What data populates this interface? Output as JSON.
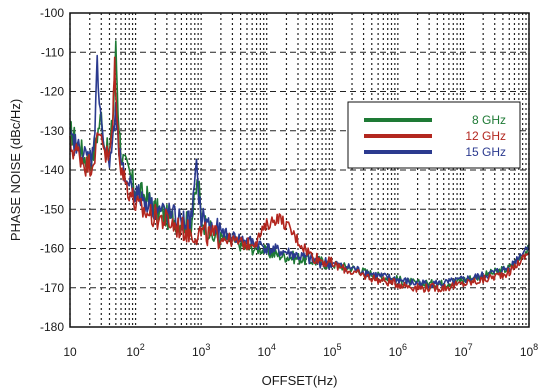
{
  "chart_data": {
    "type": "line",
    "xlabel": "OFFSET(Hz)",
    "ylabel": "PHASE NOISE (dBc/Hz)",
    "xscale": "log",
    "xlim": [
      10,
      100000000
    ],
    "ylim": [
      -180,
      -100
    ],
    "grid": true,
    "legend_position": "top-right",
    "x_ticks": [
      {
        "value": 10,
        "base": "10",
        "exp": ""
      },
      {
        "value": 100,
        "base": "10",
        "exp": "2"
      },
      {
        "value": 1000,
        "base": "10",
        "exp": "3"
      },
      {
        "value": 10000,
        "base": "10",
        "exp": "4"
      },
      {
        "value": 100000,
        "base": "10",
        "exp": "5"
      },
      {
        "value": 1000000,
        "base": "10",
        "exp": "6"
      },
      {
        "value": 10000000,
        "base": "10",
        "exp": "7"
      },
      {
        "value": 100000000,
        "base": "10",
        "exp": "8"
      }
    ],
    "y_ticks": [
      "-100",
      "-110",
      "-120",
      "-130",
      "-140",
      "-150",
      "-160",
      "-170",
      "-180"
    ],
    "series": [
      {
        "name": "8 GHz",
        "color": "#1e7a35",
        "points": [
          [
            10,
            -130
          ],
          [
            14,
            -134
          ],
          [
            18,
            -138
          ],
          [
            22,
            -137
          ],
          [
            26,
            -131
          ],
          [
            30,
            -126
          ],
          [
            34,
            -134
          ],
          [
            40,
            -136
          ],
          [
            46,
            -124
          ],
          [
            50,
            -109
          ],
          [
            54,
            -124
          ],
          [
            60,
            -136
          ],
          [
            70,
            -139
          ],
          [
            80,
            -141
          ],
          [
            90,
            -143
          ],
          [
            100,
            -145
          ],
          [
            120,
            -146
          ],
          [
            150,
            -147
          ],
          [
            200,
            -150
          ],
          [
            300,
            -152
          ],
          [
            500,
            -153
          ],
          [
            700,
            -154
          ],
          [
            900,
            -142
          ],
          [
            1000,
            -152
          ],
          [
            1500,
            -157
          ],
          [
            2000,
            -157
          ],
          [
            3000,
            -158
          ],
          [
            5000,
            -160
          ],
          [
            8000,
            -160
          ],
          [
            10000,
            -161
          ],
          [
            20000,
            -162
          ],
          [
            50000,
            -163
          ],
          [
            100000,
            -164
          ],
          [
            200000,
            -165
          ],
          [
            500000,
            -167
          ],
          [
            1000000,
            -168
          ],
          [
            2000000,
            -169
          ],
          [
            5000000,
            -169
          ],
          [
            10000000,
            -168
          ],
          [
            20000000,
            -167
          ],
          [
            50000000,
            -165
          ],
          [
            100000000,
            -160
          ]
        ]
      },
      {
        "name": "12 GHz",
        "color": "#b3271f",
        "points": [
          [
            10,
            -134
          ],
          [
            14,
            -136
          ],
          [
            18,
            -139
          ],
          [
            22,
            -138
          ],
          [
            26,
            -133
          ],
          [
            30,
            -130
          ],
          [
            35,
            -136
          ],
          [
            40,
            -137
          ],
          [
            45,
            -128
          ],
          [
            48,
            -112
          ],
          [
            52,
            -128
          ],
          [
            60,
            -139
          ],
          [
            70,
            -143
          ],
          [
            80,
            -145
          ],
          [
            90,
            -147
          ],
          [
            100,
            -149
          ],
          [
            120,
            -150
          ],
          [
            150,
            -151
          ],
          [
            200,
            -152
          ],
          [
            300,
            -153
          ],
          [
            500,
            -155
          ],
          [
            700,
            -156
          ],
          [
            1000,
            -156
          ],
          [
            1500,
            -157
          ],
          [
            2000,
            -157
          ],
          [
            3000,
            -158
          ],
          [
            5000,
            -159
          ],
          [
            7000,
            -158
          ],
          [
            10000,
            -154
          ],
          [
            15000,
            -152
          ],
          [
            20000,
            -154
          ],
          [
            30000,
            -158
          ],
          [
            50000,
            -162
          ],
          [
            100000,
            -164
          ],
          [
            200000,
            -166
          ],
          [
            500000,
            -168
          ],
          [
            1000000,
            -169
          ],
          [
            2000000,
            -170
          ],
          [
            5000000,
            -170
          ],
          [
            10000000,
            -169
          ],
          [
            20000000,
            -168
          ],
          [
            50000000,
            -166
          ],
          [
            100000000,
            -161
          ]
        ]
      },
      {
        "name": "15 GHz",
        "color": "#2b3a8f",
        "points": [
          [
            10,
            -132
          ],
          [
            14,
            -135
          ],
          [
            18,
            -137
          ],
          [
            22,
            -136
          ],
          [
            24,
            -128
          ],
          [
            26,
            -113
          ],
          [
            29,
            -124
          ],
          [
            34,
            -136
          ],
          [
            40,
            -138
          ],
          [
            46,
            -131
          ],
          [
            50,
            -126
          ],
          [
            54,
            -132
          ],
          [
            60,
            -140
          ],
          [
            70,
            -142
          ],
          [
            80,
            -143
          ],
          [
            90,
            -144
          ],
          [
            100,
            -146
          ],
          [
            120,
            -147
          ],
          [
            150,
            -148
          ],
          [
            200,
            -150
          ],
          [
            300,
            -151
          ],
          [
            500,
            -153
          ],
          [
            700,
            -153
          ],
          [
            850,
            -140
          ],
          [
            1000,
            -152
          ],
          [
            1500,
            -155
          ],
          [
            2000,
            -156
          ],
          [
            3000,
            -157
          ],
          [
            5000,
            -158
          ],
          [
            8000,
            -159
          ],
          [
            10000,
            -160
          ],
          [
            20000,
            -161
          ],
          [
            50000,
            -163
          ],
          [
            100000,
            -164
          ],
          [
            200000,
            -165
          ],
          [
            500000,
            -167
          ],
          [
            1000000,
            -168
          ],
          [
            2000000,
            -169
          ],
          [
            5000000,
            -169
          ],
          [
            10000000,
            -168
          ],
          [
            20000000,
            -167
          ],
          [
            50000000,
            -165
          ],
          [
            100000000,
            -159
          ]
        ]
      }
    ]
  }
}
